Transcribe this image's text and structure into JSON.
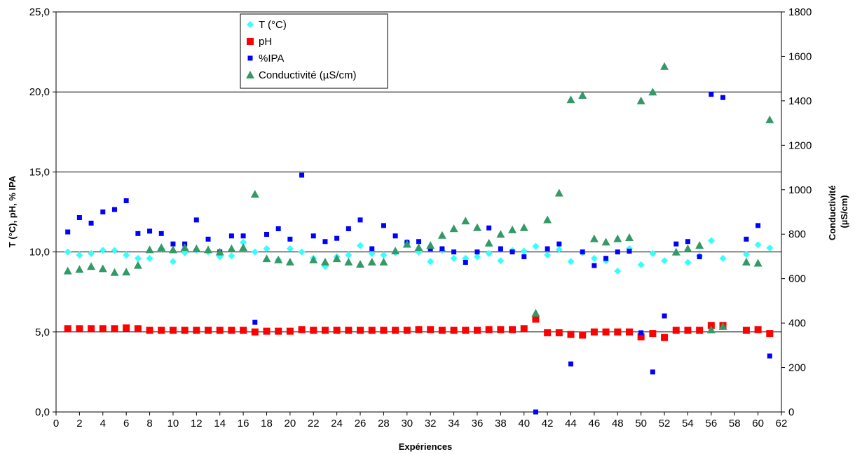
{
  "chart_data": {
    "type": "scatter",
    "title": "",
    "xlabel": "Expériences",
    "ylabel": "T (°C), pH, % IPA",
    "ylabel_right": "Conductivité (µS/cm)",
    "xlim": [
      0,
      62
    ],
    "ylim": [
      0,
      25
    ],
    "ylim_right": [
      0,
      1800
    ],
    "x_ticks": [
      0,
      2,
      4,
      6,
      8,
      10,
      12,
      14,
      16,
      18,
      20,
      22,
      24,
      26,
      28,
      30,
      32,
      34,
      36,
      38,
      40,
      42,
      44,
      46,
      48,
      50,
      52,
      54,
      56,
      58,
      60,
      62
    ],
    "y_ticks": [
      {
        "value": 0,
        "label": "0,0"
      },
      {
        "value": 5,
        "label": "5,0"
      },
      {
        "value": 10,
        "label": "10,0"
      },
      {
        "value": 15,
        "label": "15,0"
      },
      {
        "value": 20,
        "label": "20,0"
      },
      {
        "value": 25,
        "label": "25,0"
      }
    ],
    "y_ticks_right": [
      0,
      200,
      400,
      600,
      800,
      1000,
      1200,
      1400,
      1600,
      1800
    ],
    "grid": "horizontal major lines",
    "legend_position": "top-center",
    "series": [
      {
        "name": "T (°C)",
        "axis": "left",
        "marker": "diamond",
        "color": "#33FFFF",
        "points": [
          [
            1,
            10.0
          ],
          [
            2,
            9.8
          ],
          [
            3,
            9.9
          ],
          [
            4,
            10.1
          ],
          [
            5,
            10.1
          ],
          [
            6,
            9.8
          ],
          [
            7,
            9.6
          ],
          [
            8,
            9.6
          ],
          [
            9,
            10.2
          ],
          [
            10,
            9.4
          ],
          [
            11,
            9.95
          ],
          [
            12,
            10.1
          ],
          [
            13,
            10.0
          ],
          [
            14,
            9.7
          ],
          [
            15,
            9.75
          ],
          [
            16,
            10.6
          ],
          [
            17,
            10.0
          ],
          [
            18,
            10.2
          ],
          [
            19,
            9.5
          ],
          [
            20,
            10.2
          ],
          [
            21,
            10.0
          ],
          [
            22,
            9.6
          ],
          [
            23,
            9.1
          ],
          [
            24,
            9.7
          ],
          [
            25,
            9.8
          ],
          [
            26,
            10.4
          ],
          [
            27,
            9.9
          ],
          [
            28,
            9.8
          ],
          [
            29,
            9.95
          ],
          [
            30,
            10.6
          ],
          [
            31,
            10.0
          ],
          [
            32,
            9.4
          ],
          [
            33,
            10.1
          ],
          [
            34,
            9.6
          ],
          [
            35,
            9.6
          ],
          [
            36,
            9.7
          ],
          [
            37,
            9.9
          ],
          [
            38,
            9.45
          ],
          [
            39,
            10.1
          ],
          [
            40,
            10.05
          ],
          [
            41,
            10.35
          ],
          [
            42,
            9.8
          ],
          [
            43,
            10.15
          ],
          [
            44,
            9.4
          ],
          [
            45,
            9.95
          ],
          [
            46,
            9.6
          ],
          [
            47,
            9.45
          ],
          [
            48,
            8.8
          ],
          [
            49,
            10.2
          ],
          [
            50,
            9.2
          ],
          [
            51,
            9.9
          ],
          [
            52,
            9.45
          ],
          [
            53,
            9.95
          ],
          [
            54,
            9.35
          ],
          [
            55,
            9.75
          ],
          [
            56,
            10.7
          ],
          [
            57,
            9.6
          ],
          [
            59,
            9.85
          ],
          [
            60,
            10.45
          ],
          [
            61,
            10.25
          ]
        ]
      },
      {
        "name": "pH",
        "axis": "left",
        "marker": "square",
        "color": "#FF0000",
        "points": [
          [
            1,
            5.2
          ],
          [
            2,
            5.2
          ],
          [
            3,
            5.2
          ],
          [
            4,
            5.2
          ],
          [
            5,
            5.2
          ],
          [
            6,
            5.25
          ],
          [
            7,
            5.2
          ],
          [
            8,
            5.1
          ],
          [
            9,
            5.1
          ],
          [
            10,
            5.1
          ],
          [
            11,
            5.1
          ],
          [
            12,
            5.1
          ],
          [
            13,
            5.1
          ],
          [
            14,
            5.1
          ],
          [
            15,
            5.1
          ],
          [
            16,
            5.1
          ],
          [
            17,
            5.0
          ],
          [
            18,
            5.05
          ],
          [
            19,
            5.05
          ],
          [
            20,
            5.05
          ],
          [
            21,
            5.15
          ],
          [
            22,
            5.1
          ],
          [
            23,
            5.1
          ],
          [
            24,
            5.1
          ],
          [
            25,
            5.1
          ],
          [
            26,
            5.1
          ],
          [
            27,
            5.1
          ],
          [
            28,
            5.1
          ],
          [
            29,
            5.1
          ],
          [
            30,
            5.1
          ],
          [
            31,
            5.15
          ],
          [
            32,
            5.15
          ],
          [
            33,
            5.1
          ],
          [
            34,
            5.1
          ],
          [
            35,
            5.1
          ],
          [
            36,
            5.1
          ],
          [
            37,
            5.15
          ],
          [
            38,
            5.15
          ],
          [
            39,
            5.15
          ],
          [
            40,
            5.2
          ],
          [
            41,
            5.8
          ],
          [
            42,
            4.95
          ],
          [
            43,
            4.95
          ],
          [
            44,
            4.85
          ],
          [
            45,
            4.8
          ],
          [
            46,
            5.0
          ],
          [
            47,
            5.0
          ],
          [
            48,
            5.0
          ],
          [
            49,
            5.0
          ],
          [
            50,
            4.7
          ],
          [
            51,
            4.9
          ],
          [
            52,
            4.65
          ],
          [
            53,
            5.1
          ],
          [
            54,
            5.1
          ],
          [
            55,
            5.1
          ],
          [
            56,
            5.4
          ],
          [
            57,
            5.4
          ],
          [
            59,
            5.1
          ],
          [
            60,
            5.15
          ],
          [
            61,
            4.9
          ]
        ]
      },
      {
        "name": "%IPA",
        "axis": "left",
        "marker": "small-square",
        "color": "#0000FF",
        "points": [
          [
            1,
            11.25
          ],
          [
            2,
            12.15
          ],
          [
            3,
            11.8
          ],
          [
            4,
            12.5
          ],
          [
            5,
            12.65
          ],
          [
            6,
            13.2
          ],
          [
            7,
            11.15
          ],
          [
            8,
            11.3
          ],
          [
            9,
            11.15
          ],
          [
            10,
            10.5
          ],
          [
            11,
            10.5
          ],
          [
            12,
            12.0
          ],
          [
            13,
            10.8
          ],
          [
            14,
            10.0
          ],
          [
            15,
            11.0
          ],
          [
            16,
            11.0
          ],
          [
            17,
            5.6
          ],
          [
            18,
            11.1
          ],
          [
            19,
            11.45
          ],
          [
            20,
            10.8
          ],
          [
            21,
            14.8
          ],
          [
            22,
            11.0
          ],
          [
            23,
            10.65
          ],
          [
            24,
            10.85
          ],
          [
            25,
            11.45
          ],
          [
            26,
            12.0
          ],
          [
            27,
            10.2
          ],
          [
            28,
            11.65
          ],
          [
            29,
            11.0
          ],
          [
            30,
            10.6
          ],
          [
            31,
            10.65
          ],
          [
            32,
            10.2
          ],
          [
            33,
            10.2
          ],
          [
            34,
            10.0
          ],
          [
            35,
            9.35
          ],
          [
            36,
            10.0
          ],
          [
            37,
            11.5
          ],
          [
            38,
            10.2
          ],
          [
            39,
            10.0
          ],
          [
            40,
            9.7
          ],
          [
            41,
            0.0
          ],
          [
            42,
            10.2
          ],
          [
            43,
            10.5
          ],
          [
            44,
            3.0
          ],
          [
            45,
            10.0
          ],
          [
            46,
            9.15
          ],
          [
            47,
            9.6
          ],
          [
            48,
            10.0
          ],
          [
            49,
            10.05
          ],
          [
            50,
            4.95
          ],
          [
            51,
            2.5
          ],
          [
            52,
            6.0
          ],
          [
            53,
            10.5
          ],
          [
            54,
            10.65
          ],
          [
            55,
            9.7
          ],
          [
            56,
            19.85
          ],
          [
            57,
            19.65
          ],
          [
            59,
            10.8
          ],
          [
            60,
            11.65
          ],
          [
            61,
            3.5
          ]
        ]
      },
      {
        "name": "Conductivité (µS/cm)",
        "axis": "right",
        "marker": "triangle",
        "color": "#339966",
        "points": [
          [
            1,
            635
          ],
          [
            2,
            642
          ],
          [
            3,
            655
          ],
          [
            4,
            645
          ],
          [
            5,
            628
          ],
          [
            6,
            630
          ],
          [
            7,
            660
          ],
          [
            8,
            730
          ],
          [
            9,
            740
          ],
          [
            10,
            730
          ],
          [
            11,
            740
          ],
          [
            12,
            735
          ],
          [
            13,
            730
          ],
          [
            14,
            720
          ],
          [
            15,
            735
          ],
          [
            16,
            740
          ],
          [
            17,
            980
          ],
          [
            18,
            690
          ],
          [
            19,
            685
          ],
          [
            20,
            675
          ],
          [
            22,
            685
          ],
          [
            23,
            675
          ],
          [
            24,
            690
          ],
          [
            25,
            675
          ],
          [
            26,
            665
          ],
          [
            27,
            675
          ],
          [
            28,
            675
          ],
          [
            29,
            725
          ],
          [
            30,
            755
          ],
          [
            31,
            740
          ],
          [
            32,
            750
          ],
          [
            33,
            795
          ],
          [
            34,
            825
          ],
          [
            35,
            860
          ],
          [
            36,
            830
          ],
          [
            37,
            760
          ],
          [
            38,
            800
          ],
          [
            39,
            820
          ],
          [
            40,
            830
          ],
          [
            41,
            445
          ],
          [
            42,
            865
          ],
          [
            43,
            985
          ],
          [
            44,
            1405
          ],
          [
            45,
            1425
          ],
          [
            46,
            780
          ],
          [
            47,
            765
          ],
          [
            48,
            780
          ],
          [
            49,
            785
          ],
          [
            50,
            1400
          ],
          [
            51,
            1440
          ],
          [
            52,
            1555
          ],
          [
            53,
            720
          ],
          [
            54,
            735
          ],
          [
            55,
            750
          ],
          [
            56,
            370
          ],
          [
            57,
            385
          ],
          [
            59,
            675
          ],
          [
            60,
            670
          ],
          [
            61,
            1315
          ]
        ]
      }
    ]
  }
}
